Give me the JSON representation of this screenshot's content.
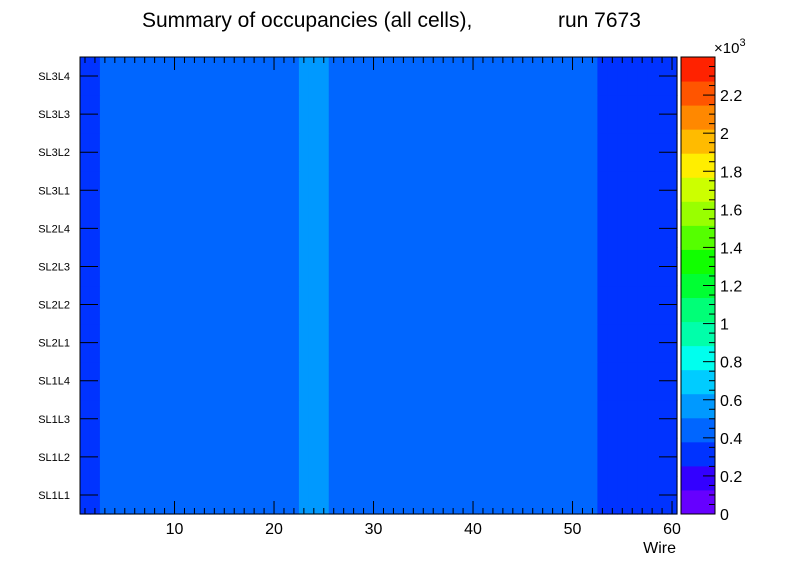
{
  "chart_data": {
    "type": "heatmap",
    "title": "Summary of occupancies (all cells),",
    "run_label": "run 7673",
    "xlabel": "Wire",
    "ylabel": "",
    "x_range": [
      0.5,
      60.5
    ],
    "x_ticks": [
      10,
      20,
      30,
      40,
      50,
      60
    ],
    "x_tick_labels": [
      "10",
      "20",
      "30",
      "40",
      "50",
      "60"
    ],
    "rows": [
      "SL1L1",
      "SL1L2",
      "SL1L3",
      "SL1L4",
      "SL2L1",
      "SL2L2",
      "SL2L3",
      "SL2L4",
      "SL3L1",
      "SL3L2",
      "SL3L3",
      "SL3L4"
    ],
    "color_scale": {
      "min": 0,
      "max": 2.4,
      "multiplier_label": "×10",
      "multiplier_exponent": "3",
      "tick_values": [
        0,
        0.2,
        0.4,
        0.6,
        0.8,
        1,
        1.2,
        1.4,
        1.6,
        1.8,
        2,
        2.2
      ],
      "tick_labels": [
        "0",
        "0.2",
        "0.4",
        "0.6",
        "0.8",
        "1",
        "1.2",
        "1.4",
        "1.6",
        "1.8",
        "2",
        "2.2"
      ],
      "palette": [
        "#6600ff",
        "#3300ff",
        "#0033ff",
        "#0066ff",
        "#0099ff",
        "#00ccff",
        "#00ffee",
        "#00ffaa",
        "#00ff77",
        "#00ff33",
        "#11ff00",
        "#55ff00",
        "#99ff00",
        "#ccff00",
        "#ffee00",
        "#ffbb00",
        "#ff8800",
        "#ff5500",
        "#ff2200"
      ]
    },
    "values_unit": "occupancy (x10^3), null = empty cell",
    "values": [
      [
        0.3,
        0.3,
        0.5,
        0.5,
        0.5,
        0.4,
        0.4,
        0.4,
        0.5,
        0.5,
        0.5,
        0.5,
        0.4,
        0.4,
        0.5,
        0.4,
        0.4,
        0.4,
        0.4,
        0.5,
        0.4,
        0.5,
        0.6,
        0.6,
        0.6,
        0.4,
        0.4,
        0.4,
        0.4,
        0.4,
        0.4,
        0.4,
        0.4,
        0.4,
        0.4,
        0.4,
        0.5,
        0.5,
        0.5,
        0.5,
        0.5,
        0.4,
        0.4,
        0.4,
        0.4,
        0.4,
        0.4,
        0.4,
        0.4,
        0.4,
        0.4,
        0.4,
        0.3,
        0.3,
        0.3,
        0.3,
        0.3,
        0.3,
        0.3,
        0.3
      ],
      [
        0.3,
        0.3,
        0.5,
        0.5,
        0.5,
        0.4,
        0.4,
        0.4,
        0.5,
        0.5,
        0.5,
        0.5,
        0.4,
        0.4,
        0.5,
        0.4,
        0.4,
        0.4,
        0.4,
        0.5,
        0.4,
        0.5,
        0.6,
        0.6,
        0.6,
        0.4,
        0.4,
        0.4,
        0.4,
        0.4,
        0.4,
        0.4,
        0.4,
        0.4,
        0.4,
        0.4,
        0.5,
        0.5,
        0.5,
        0.5,
        0.5,
        0.4,
        0.4,
        0.4,
        0.4,
        0.4,
        0.4,
        0.4,
        0.4,
        0.4,
        0.4,
        0.4,
        0.3,
        0.3,
        0.3,
        0.3,
        0.3,
        0.3,
        0.3,
        0.3
      ],
      [
        0.3,
        0.3,
        0.5,
        0.5,
        0.5,
        0.4,
        0.4,
        0.4,
        0.5,
        0.5,
        0.5,
        0.5,
        0.4,
        0.4,
        0.5,
        0.4,
        0.4,
        0.4,
        0.4,
        0.5,
        0.4,
        0.5,
        0.6,
        0.6,
        0.6,
        0.4,
        0.4,
        0.4,
        0.4,
        0.4,
        0.4,
        0.4,
        0.4,
        0.4,
        0.4,
        0.4,
        0.5,
        0.5,
        0.5,
        0.5,
        0.5,
        0.4,
        0.4,
        0.4,
        0.4,
        0.4,
        0.4,
        0.4,
        0.4,
        0.4,
        0.4,
        0.4,
        0.3,
        0.3,
        0.3,
        0.3,
        0.3,
        0.3,
        0.3,
        0.3
      ],
      [
        0.3,
        0.3,
        0.5,
        0.5,
        0.5,
        0.4,
        0.4,
        0.4,
        0.5,
        0.5,
        0.5,
        0.5,
        0.4,
        0.4,
        0.5,
        0.4,
        0.4,
        0.4,
        0.4,
        0.5,
        0.4,
        0.5,
        0.6,
        0.6,
        0.6,
        0.4,
        0.4,
        0.4,
        0.4,
        0.4,
        0.4,
        0.4,
        0.4,
        0.4,
        0.4,
        0.4,
        0.5,
        0.5,
        0.5,
        0.5,
        0.5,
        0.4,
        0.4,
        0.4,
        0.4,
        0.4,
        0.4,
        0.4,
        0.4,
        0.4,
        0.4,
        0.4,
        0.3,
        0.3,
        0.3,
        0.3,
        0.3,
        0.3,
        0.3,
        0.3
      ],
      [
        0.3,
        0.3,
        0.5,
        0.5,
        0.5,
        0.4,
        0.4,
        0.4,
        0.5,
        0.5,
        0.5,
        0.5,
        0.4,
        0.4,
        0.5,
        0.4,
        0.4,
        0.4,
        0.4,
        0.5,
        0.4,
        0.5,
        0.6,
        0.6,
        0.6,
        0.4,
        0.4,
        0.4,
        0.4,
        0.4,
        0.4,
        0.4,
        0.4,
        0.4,
        0.4,
        0.4,
        0.5,
        0.5,
        0.5,
        0.5,
        0.5,
        0.4,
        0.4,
        0.4,
        0.4,
        0.4,
        0.4,
        0.4,
        0.4,
        0.4,
        0.4,
        0.4,
        0.3,
        0.3,
        0.3,
        0.3,
        0.3,
        0.3,
        0.3,
        0.3
      ],
      [
        0.3,
        0.3,
        0.5,
        0.5,
        0.5,
        0.4,
        0.4,
        0.4,
        0.5,
        0.5,
        0.5,
        0.5,
        0.4,
        0.4,
        0.5,
        0.4,
        0.4,
        0.4,
        0.4,
        0.5,
        0.4,
        0.5,
        0.6,
        0.6,
        0.6,
        0.4,
        0.4,
        0.4,
        0.4,
        0.4,
        0.4,
        0.4,
        0.4,
        0.4,
        0.4,
        0.4,
        0.5,
        0.5,
        0.5,
        0.5,
        0.5,
        0.4,
        0.4,
        0.4,
        0.4,
        0.4,
        0.4,
        0.4,
        0.4,
        0.4,
        0.4,
        0.4,
        0.3,
        0.3,
        0.3,
        0.3,
        0.3,
        0.3,
        0.3,
        0.3
      ],
      [
        0.3,
        0.3,
        0.5,
        0.5,
        0.5,
        0.4,
        0.4,
        0.4,
        0.5,
        0.5,
        0.5,
        0.5,
        0.4,
        0.4,
        0.5,
        0.4,
        0.4,
        0.4,
        0.4,
        0.5,
        0.4,
        0.5,
        0.6,
        0.6,
        0.6,
        0.4,
        0.4,
        0.4,
        0.4,
        0.4,
        0.4,
        0.4,
        0.4,
        0.4,
        0.4,
        0.4,
        0.5,
        0.5,
        0.5,
        0.5,
        0.5,
        0.4,
        0.4,
        0.4,
        0.4,
        0.4,
        0.4,
        0.4,
        0.4,
        0.4,
        0.4,
        0.4,
        0.3,
        0.3,
        0.3,
        0.3,
        0.3,
        0.3,
        0.3,
        0.3
      ],
      [
        0.3,
        0.3,
        0.5,
        0.5,
        0.5,
        0.4,
        0.4,
        0.4,
        0.5,
        0.5,
        0.5,
        0.5,
        0.4,
        0.4,
        0.5,
        0.4,
        0.4,
        0.4,
        0.4,
        0.5,
        0.4,
        0.5,
        0.6,
        0.6,
        0.6,
        0.4,
        0.4,
        0.4,
        0.4,
        0.4,
        0.4,
        0.4,
        0.4,
        0.4,
        0.4,
        0.4,
        0.5,
        0.5,
        0.5,
        0.5,
        0.5,
        0.4,
        0.4,
        0.4,
        0.4,
        0.4,
        0.4,
        0.4,
        0.4,
        0.4,
        0.4,
        0.4,
        0.3,
        0.3,
        0.3,
        0.3,
        0.3,
        0.3,
        0.3,
        0.3
      ],
      [
        0.3,
        0.3,
        0.5,
        0.5,
        0.5,
        0.4,
        0.4,
        0.4,
        0.5,
        0.5,
        0.5,
        0.5,
        0.4,
        0.4,
        0.5,
        0.4,
        0.4,
        0.4,
        0.4,
        0.5,
        0.4,
        0.5,
        0.6,
        0.6,
        0.6,
        0.4,
        0.4,
        0.4,
        0.4,
        0.4,
        0.4,
        0.4,
        0.4,
        0.4,
        0.4,
        0.4,
        0.5,
        0.5,
        0.5,
        0.5,
        0.5,
        0.4,
        0.4,
        0.4,
        0.4,
        0.4,
        0.4,
        0.4,
        0.4,
        0.4,
        0.4,
        0.4,
        0.3,
        0.3,
        0.3,
        0.3,
        0.3,
        0.3,
        0.3,
        0.3
      ],
      [
        0.3,
        0.3,
        0.5,
        0.5,
        0.5,
        0.4,
        0.4,
        0.4,
        0.5,
        0.5,
        0.5,
        0.5,
        0.4,
        0.4,
        0.5,
        0.4,
        0.4,
        0.4,
        0.4,
        0.5,
        0.4,
        0.5,
        0.6,
        0.6,
        0.6,
        0.4,
        0.4,
        0.4,
        0.4,
        0.4,
        0.4,
        0.4,
        0.4,
        0.4,
        0.4,
        0.4,
        0.5,
        0.5,
        0.5,
        0.5,
        0.5,
        0.4,
        0.4,
        0.4,
        0.4,
        0.4,
        0.4,
        0.4,
        0.4,
        0.4,
        0.4,
        0.4,
        0.3,
        0.3,
        0.3,
        0.3,
        0.3,
        0.3,
        0.3,
        0.3
      ],
      [
        0.3,
        0.3,
        0.5,
        0.5,
        0.5,
        0.4,
        0.4,
        0.4,
        0.5,
        0.5,
        0.5,
        0.5,
        0.4,
        0.4,
        0.5,
        0.4,
        0.4,
        0.4,
        0.4,
        0.5,
        0.4,
        0.5,
        0.6,
        0.6,
        0.6,
        0.4,
        0.4,
        0.4,
        0.4,
        0.4,
        0.4,
        0.4,
        0.4,
        0.4,
        0.4,
        0.4,
        0.5,
        0.5,
        0.5,
        0.5,
        0.5,
        0.4,
        0.4,
        0.4,
        0.4,
        0.4,
        0.4,
        0.4,
        0.4,
        0.4,
        0.4,
        0.4,
        0.3,
        0.3,
        0.3,
        0.3,
        0.3,
        0.3,
        0.3,
        0.3
      ],
      [
        0.3,
        0.3,
        0.5,
        0.5,
        0.5,
        0.4,
        0.4,
        0.4,
        0.5,
        0.5,
        0.5,
        0.5,
        0.4,
        0.4,
        0.5,
        0.4,
        0.4,
        0.4,
        0.4,
        0.5,
        0.4,
        0.5,
        0.6,
        0.6,
        0.6,
        0.4,
        0.4,
        0.4,
        0.4,
        0.4,
        0.4,
        0.4,
        0.4,
        0.4,
        0.4,
        0.4,
        0.5,
        0.5,
        0.5,
        0.5,
        0.5,
        0.4,
        0.4,
        0.4,
        0.4,
        0.4,
        0.4,
        0.4,
        0.4,
        0.4,
        0.4,
        0.4,
        0.3,
        0.3,
        0.3,
        0.3,
        0.3,
        0.3,
        0.3,
        0.3
      ]
    ]
  }
}
